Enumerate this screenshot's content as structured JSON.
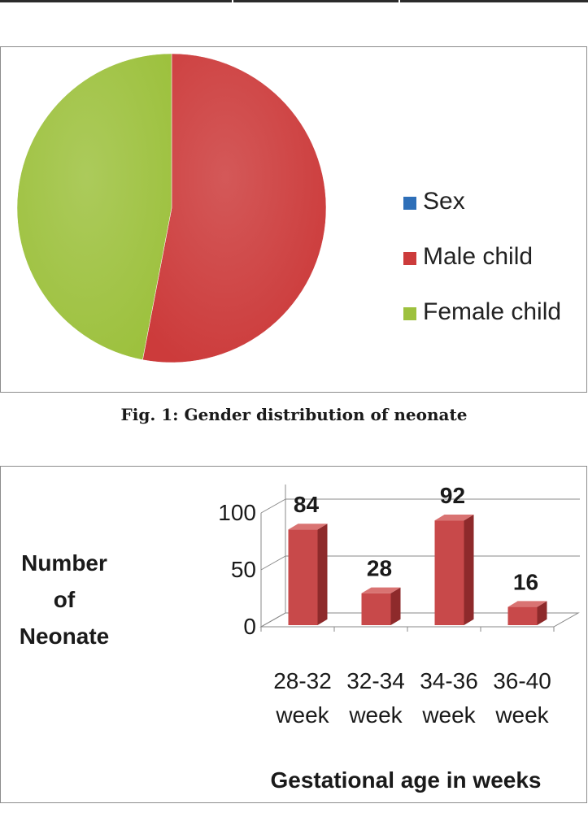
{
  "charts": {
    "pie": {
      "caption": "Fig. 1: Gender distribution of neonate"
    }
  },
  "chart_data": [
    {
      "type": "pie",
      "title": "",
      "labels": [
        "Sex",
        "Male child",
        "Female child"
      ],
      "values": [
        0,
        53,
        47
      ],
      "colors": [
        "#2e6fb8",
        "#cc3b3b",
        "#9dc13e"
      ],
      "legend_position": "right"
    },
    {
      "type": "bar",
      "title": "",
      "categories": [
        "28-32 week",
        "32-34 week",
        "34-36 week",
        "36-40 week"
      ],
      "category_lines": [
        [
          "28-32",
          "week"
        ],
        [
          "32-34",
          "week"
        ],
        [
          "34-36",
          "week"
        ],
        [
          "36-40",
          "week"
        ]
      ],
      "values": [
        84,
        28,
        92,
        16
      ],
      "data_labels": [
        "84",
        "28",
        "92",
        "16"
      ],
      "ylabel_lines": [
        "Number",
        "of",
        "Neonate"
      ],
      "xlabel": "Gestational age in weeks",
      "ylim": [
        0,
        100
      ],
      "yticks": [
        0,
        50,
        100
      ],
      "grid": true,
      "bar_color": "#c8494a",
      "bar_side_color": "#8e2a2b",
      "bar_top_color": "#d97372"
    }
  ]
}
